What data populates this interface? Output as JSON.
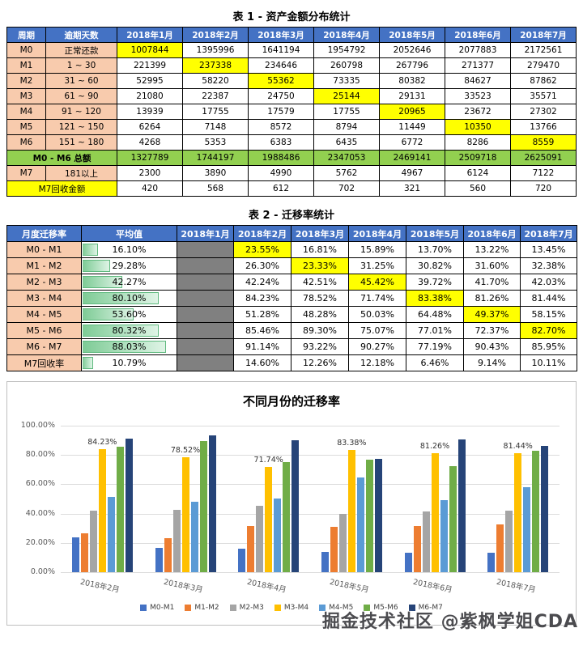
{
  "table1": {
    "title": "表 1 - 资产金额分布统计",
    "headers": [
      "周期",
      "逾期天数",
      "2018年1月",
      "2018年2月",
      "2018年3月",
      "2018年4月",
      "2018年5月",
      "2018年6月",
      "2018年7月"
    ],
    "rows": [
      {
        "period": "M0",
        "days": "正常还款",
        "values": [
          "1007844",
          "1395996",
          "1641194",
          "1954792",
          "2052646",
          "2077883",
          "2172561"
        ],
        "highlight": 0
      },
      {
        "period": "M1",
        "days": "1 ~ 30",
        "values": [
          "221399",
          "237338",
          "234646",
          "260798",
          "267796",
          "271377",
          "279470"
        ],
        "highlight": 1
      },
      {
        "period": "M2",
        "days": "31 ~ 60",
        "values": [
          "52995",
          "58220",
          "55362",
          "73335",
          "80382",
          "84627",
          "87862"
        ],
        "highlight": 2
      },
      {
        "period": "M3",
        "days": "61 ~ 90",
        "values": [
          "21080",
          "22387",
          "24750",
          "25144",
          "29131",
          "33523",
          "35571"
        ],
        "highlight": 3
      },
      {
        "period": "M4",
        "days": "91 ~ 120",
        "values": [
          "13939",
          "17755",
          "17579",
          "17755",
          "20965",
          "23672",
          "27302"
        ],
        "highlight": 4
      },
      {
        "period": "M5",
        "days": "121 ~ 150",
        "values": [
          "6264",
          "7148",
          "8572",
          "8794",
          "11449",
          "10350",
          "13766"
        ],
        "highlight": 5
      },
      {
        "period": "M6",
        "days": "151 ~ 180",
        "values": [
          "4268",
          "5353",
          "6383",
          "6435",
          "6772",
          "8286",
          "8559"
        ],
        "highlight": 6
      }
    ],
    "total_row": {
      "label": "M0 - M6 总额",
      "values": [
        "1327789",
        "1744197",
        "1988486",
        "2347053",
        "2469141",
        "2509718",
        "2625091"
      ]
    },
    "m7_row": {
      "period": "M7",
      "days": "181以上",
      "values": [
        "2300",
        "3890",
        "4990",
        "5762",
        "4967",
        "6124",
        "7122"
      ]
    },
    "recovery_row": {
      "label": "M7回收金额",
      "values": [
        "420",
        "568",
        "612",
        "702",
        "321",
        "560",
        "720"
      ]
    }
  },
  "table2": {
    "title": "表 2 - 迁移率统计",
    "headers": [
      "月度迁移率",
      "平均值",
      "2018年1月",
      "2018年2月",
      "2018年3月",
      "2018年4月",
      "2018年5月",
      "2018年6月",
      "2018年7月"
    ],
    "rows": [
      {
        "label": "M0 - M1",
        "avg": "16.10%",
        "bar": 16.1,
        "values": [
          "23.55%",
          "16.81%",
          "15.89%",
          "13.70%",
          "13.22%",
          "13.45%"
        ],
        "highlight": 0
      },
      {
        "label": "M1 - M2",
        "avg": "29.28%",
        "bar": 29.28,
        "values": [
          "26.30%",
          "23.33%",
          "31.25%",
          "30.82%",
          "31.60%",
          "32.38%"
        ],
        "highlight": 1
      },
      {
        "label": "M2 - M3",
        "avg": "42.27%",
        "bar": 42.27,
        "values": [
          "42.24%",
          "42.51%",
          "45.42%",
          "39.72%",
          "41.70%",
          "42.03%"
        ],
        "highlight": 2
      },
      {
        "label": "M3 - M4",
        "avg": "80.10%",
        "bar": 80.1,
        "values": [
          "84.23%",
          "78.52%",
          "71.74%",
          "83.38%",
          "81.26%",
          "81.44%"
        ],
        "highlight": 3
      },
      {
        "label": "M4 - M5",
        "avg": "53.60%",
        "bar": 53.6,
        "values": [
          "51.28%",
          "48.28%",
          "50.03%",
          "64.48%",
          "49.37%",
          "58.15%"
        ],
        "highlight": 4
      },
      {
        "label": "M5 - M6",
        "avg": "80.32%",
        "bar": 80.32,
        "values": [
          "85.46%",
          "89.30%",
          "75.07%",
          "77.01%",
          "72.37%",
          "82.70%"
        ],
        "highlight": 5
      },
      {
        "label": "M6 - M7",
        "avg": "88.03%",
        "bar": 88.03,
        "values": [
          "91.14%",
          "93.22%",
          "90.27%",
          "77.19%",
          "90.43%",
          "85.95%"
        ],
        "highlight": -1
      }
    ],
    "recovery_row": {
      "label": "M7回收率",
      "avg": "10.79%",
      "bar": 10.79,
      "values": [
        "14.60%",
        "12.26%",
        "12.18%",
        "6.46%",
        "9.14%",
        "10.11%"
      ],
      "highlight": -1
    }
  },
  "chart_data": {
    "type": "bar",
    "title": "不同月份的迁移率",
    "categories": [
      "2018年2月",
      "2018年3月",
      "2018年4月",
      "2018年5月",
      "2018年6月",
      "2018年7月"
    ],
    "series": [
      {
        "name": "M0-M1",
        "color": "#4472C4",
        "values": [
          23.55,
          16.81,
          15.89,
          13.7,
          13.22,
          13.45
        ]
      },
      {
        "name": "M1-M2",
        "color": "#ED7D31",
        "values": [
          26.3,
          23.33,
          31.25,
          30.82,
          31.6,
          32.38
        ]
      },
      {
        "name": "M2-M3",
        "color": "#A5A5A5",
        "values": [
          42.24,
          42.51,
          45.42,
          39.72,
          41.7,
          42.03
        ]
      },
      {
        "name": "M3-M4",
        "color": "#FFC000",
        "values": [
          84.23,
          78.52,
          71.74,
          83.38,
          81.26,
          81.44
        ]
      },
      {
        "name": "M4-M5",
        "color": "#5B9BD5",
        "values": [
          51.28,
          48.28,
          50.03,
          64.48,
          49.37,
          58.15
        ]
      },
      {
        "name": "M5-M6",
        "color": "#70AD47",
        "values": [
          85.46,
          89.3,
          75.07,
          77.01,
          72.37,
          82.7
        ]
      },
      {
        "name": "M6-M7",
        "color": "#264478",
        "values": [
          91.14,
          93.22,
          90.27,
          77.19,
          90.43,
          85.95
        ]
      }
    ],
    "labeled_series": "M3-M4",
    "data_labels": [
      "84.23%",
      "78.52%",
      "71.74%",
      "83.38%",
      "81.26%",
      "81.44%"
    ],
    "yticks": [
      "0.00%",
      "20.00%",
      "40.00%",
      "60.00%",
      "80.00%",
      "100.00%"
    ],
    "ylim": [
      0,
      100
    ],
    "grid": true,
    "legend_position": "bottom"
  },
  "watermark": "掘金技术社区 @紫枫学姐CDA",
  "colors": {
    "header_blue": "#4472C4",
    "label_orange": "#F8CBAD",
    "highlight_yellow": "#FFFF00",
    "total_green": "#92D050",
    "empty_gray": "#808080",
    "databar_green": "#7DCB95"
  }
}
